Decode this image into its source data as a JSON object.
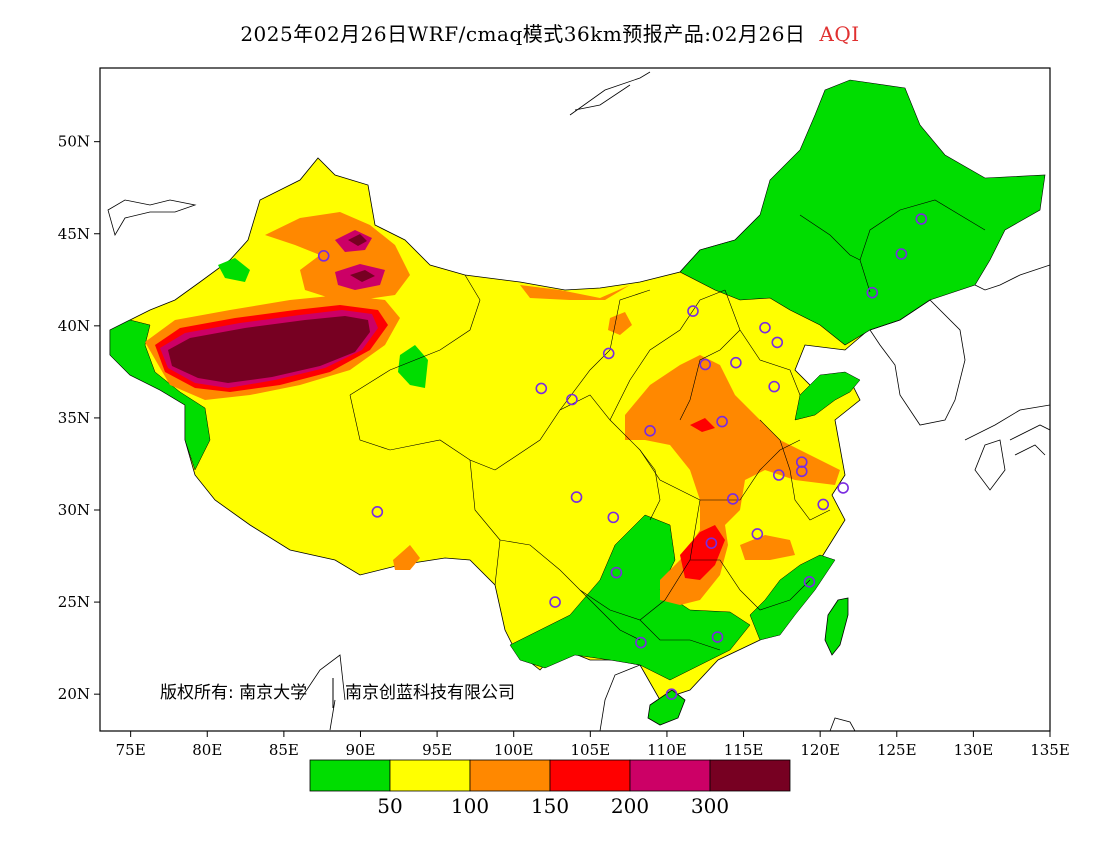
{
  "title": {
    "text": "2025年02月26日WRF/cmaq模式36km预报产品:02月26日",
    "variable": "AQI",
    "variable_color": "#e03030"
  },
  "map": {
    "lon_range": [
      73,
      135
    ],
    "lat_range": [
      18,
      54
    ],
    "x_ticks": [
      "75E",
      "80E",
      "85E",
      "90E",
      "95E",
      "100E",
      "105E",
      "110E",
      "115E",
      "120E",
      "125E",
      "130E",
      "135E"
    ],
    "y_ticks": [
      "20N",
      "25N",
      "30N",
      "35N",
      "40N",
      "45N",
      "50N"
    ]
  },
  "copyright": {
    "text": "版权所有: 南京大学",
    "text2": "南京创蓝科技有限公司"
  },
  "colorbar": {
    "colors": [
      "#00dd00",
      "#ffff00",
      "#ff8800",
      "#ff0000",
      "#cc0066",
      "#770022"
    ],
    "labels": [
      "50",
      "100",
      "150",
      "200",
      "300"
    ]
  },
  "stations": [
    {
      "lon": 87.6,
      "lat": 43.8
    },
    {
      "lon": 91.1,
      "lat": 29.9
    },
    {
      "lon": 101.8,
      "lat": 36.6
    },
    {
      "lon": 103.8,
      "lat": 36.0
    },
    {
      "lon": 106.2,
      "lat": 38.5
    },
    {
      "lon": 111.7,
      "lat": 40.8
    },
    {
      "lon": 116.4,
      "lat": 39.9
    },
    {
      "lon": 117.2,
      "lat": 39.1
    },
    {
      "lon": 114.5,
      "lat": 38.0
    },
    {
      "lon": 112.5,
      "lat": 37.9
    },
    {
      "lon": 117.0,
      "lat": 36.7
    },
    {
      "lon": 113.6,
      "lat": 34.8
    },
    {
      "lon": 108.9,
      "lat": 34.3
    },
    {
      "lon": 104.1,
      "lat": 30.7
    },
    {
      "lon": 106.5,
      "lat": 29.6
    },
    {
      "lon": 114.3,
      "lat": 30.6
    },
    {
      "lon": 112.9,
      "lat": 28.2
    },
    {
      "lon": 115.9,
      "lat": 28.7
    },
    {
      "lon": 117.3,
      "lat": 31.9
    },
    {
      "lon": 118.8,
      "lat": 32.1
    },
    {
      "lon": 120.2,
      "lat": 30.3
    },
    {
      "lon": 121.5,
      "lat": 31.2
    },
    {
      "lon": 119.3,
      "lat": 26.1
    },
    {
      "lon": 113.3,
      "lat": 23.1
    },
    {
      "lon": 108.3,
      "lat": 22.8
    },
    {
      "lon": 106.7,
      "lat": 26.6
    },
    {
      "lon": 102.7,
      "lat": 25.0
    },
    {
      "lon": 110.3,
      "lat": 20.0
    },
    {
      "lon": 123.4,
      "lat": 41.8
    },
    {
      "lon": 125.3,
      "lat": 43.9
    },
    {
      "lon": 126.6,
      "lat": 45.8
    },
    {
      "lon": 118.8,
      "lat": 32.6
    }
  ]
}
